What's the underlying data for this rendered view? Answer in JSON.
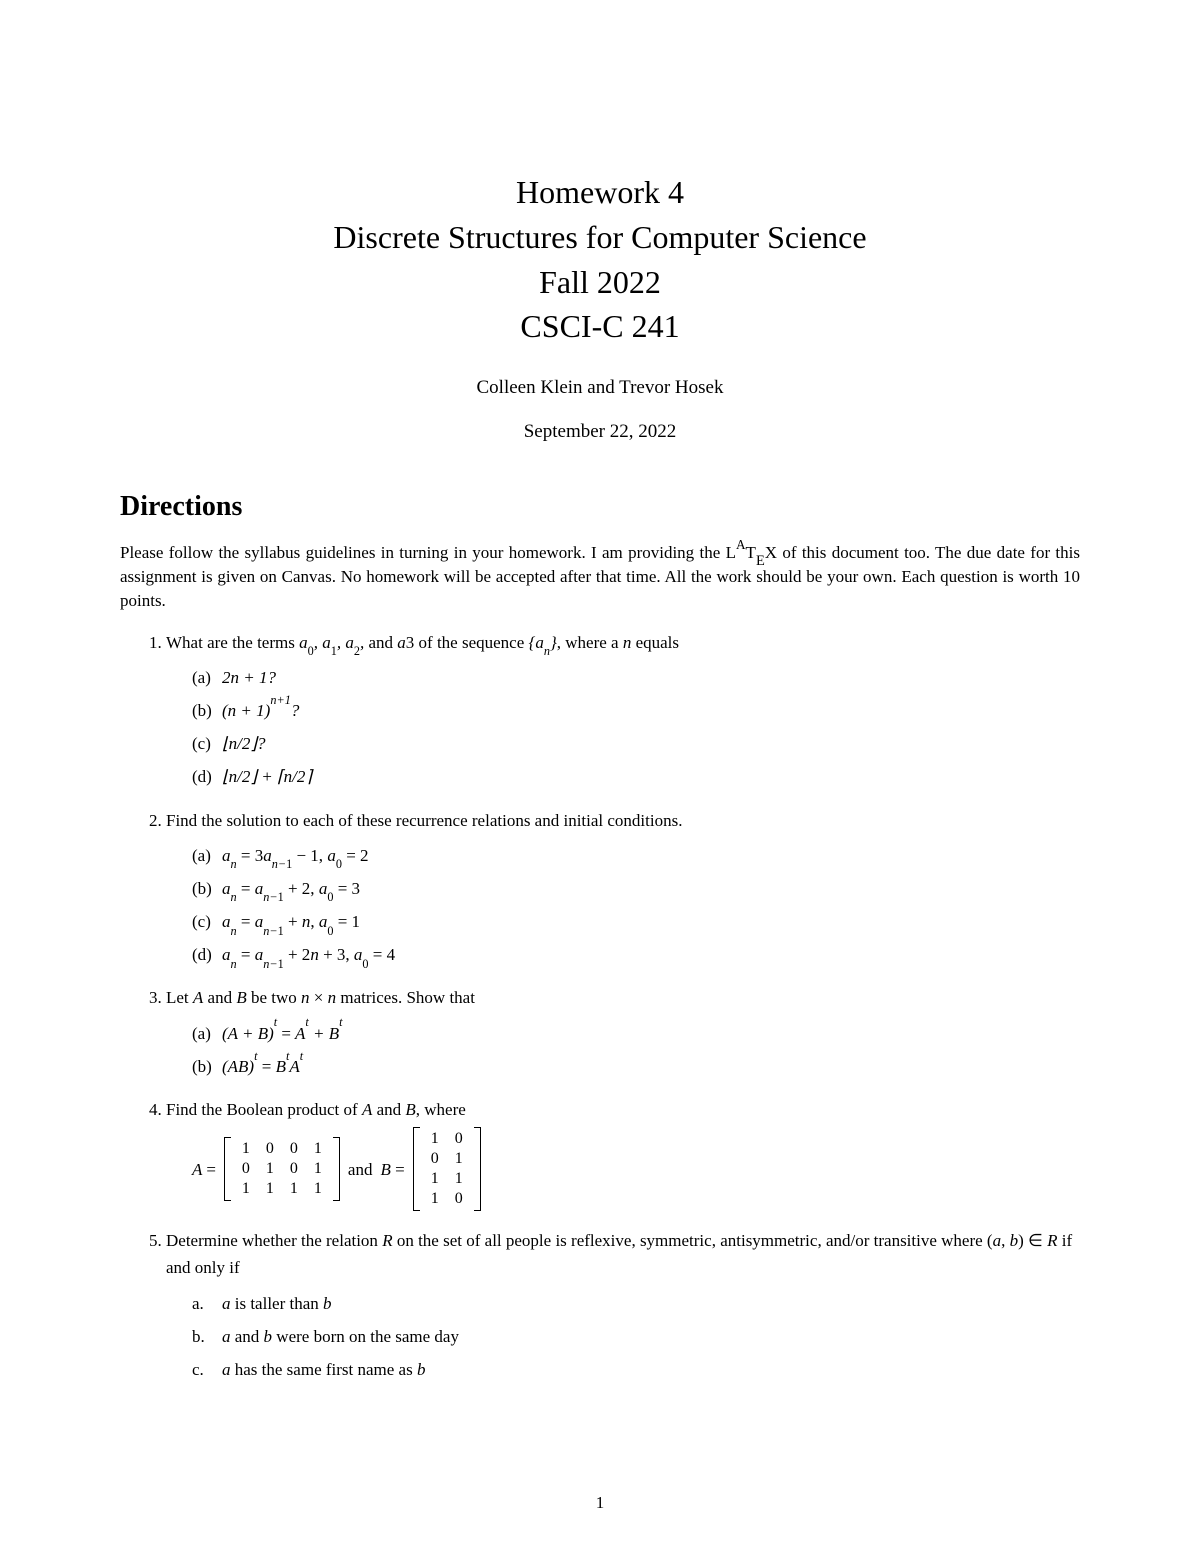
{
  "title": {
    "line1": "Homework 4",
    "line2": "Discrete Structures for Computer Science",
    "line3": "Fall 2022",
    "line4": "CSCI-C 241"
  },
  "authors": "Colleen Klein and Trevor Hosek",
  "date": "September 22, 2022",
  "section_heading": "Directions",
  "directions_pre": "Please follow the syllabus guidelines in turning in your homework. I am providing the ",
  "directions_post": " of this document too. The due date for this assignment is given on Canvas. No homework will be accepted after that time. All the work should be your own. Each question is worth 10 points.",
  "q1": {
    "stem_pre": "What are the terms ",
    "stem_post": " equals",
    "a": "2n + 1?",
    "b": "(n + 1)^{n+1}?",
    "c": "⌊n/2⌋?",
    "d": "⌊n/2⌋ + ⌈n/2⌉"
  },
  "q2": {
    "stem": "Find the solution to each of these recurrence relations and initial conditions.",
    "a": "aₙ = 3aₙ₋₁ − 1, a₀ = 2",
    "b": "aₙ = aₙ₋₁ + 2, a₀ = 3",
    "c": "aₙ = aₙ₋₁ + n, a₀ = 1",
    "d": "aₙ = aₙ₋₁ + 2n + 3, a₀ = 4"
  },
  "q3": {
    "stem": "Let A and B be two n × n matrices. Show that",
    "a": "(A + B)ᵗ = Aᵗ + Bᵗ",
    "b": "(AB)ᵗ = BᵗAᵗ"
  },
  "q4": {
    "stem": "Find the Boolean product of A and B, where",
    "A_label": "A =",
    "and_label": "and",
    "B_label": "B =",
    "A": [
      [
        1,
        0,
        0,
        1
      ],
      [
        0,
        1,
        0,
        1
      ],
      [
        1,
        1,
        1,
        1
      ]
    ],
    "B": [
      [
        1,
        0
      ],
      [
        0,
        1
      ],
      [
        1,
        1
      ],
      [
        1,
        0
      ]
    ]
  },
  "q5": {
    "stem": "Determine whether the relation R on the set of all people is reflexive, symmetric, antisymmetric, and/or transitive where (a, b) ∈ R if and only if",
    "a": "a is taller than b",
    "b": "a and b were born on the same day",
    "c": "a has the same first name as b"
  },
  "pagenum": "1",
  "labels": {
    "a": "(a)",
    "b": "(b)",
    "c": "(c)",
    "d": "(d)",
    "pa": "a.",
    "pb": "b.",
    "pc": "c."
  }
}
